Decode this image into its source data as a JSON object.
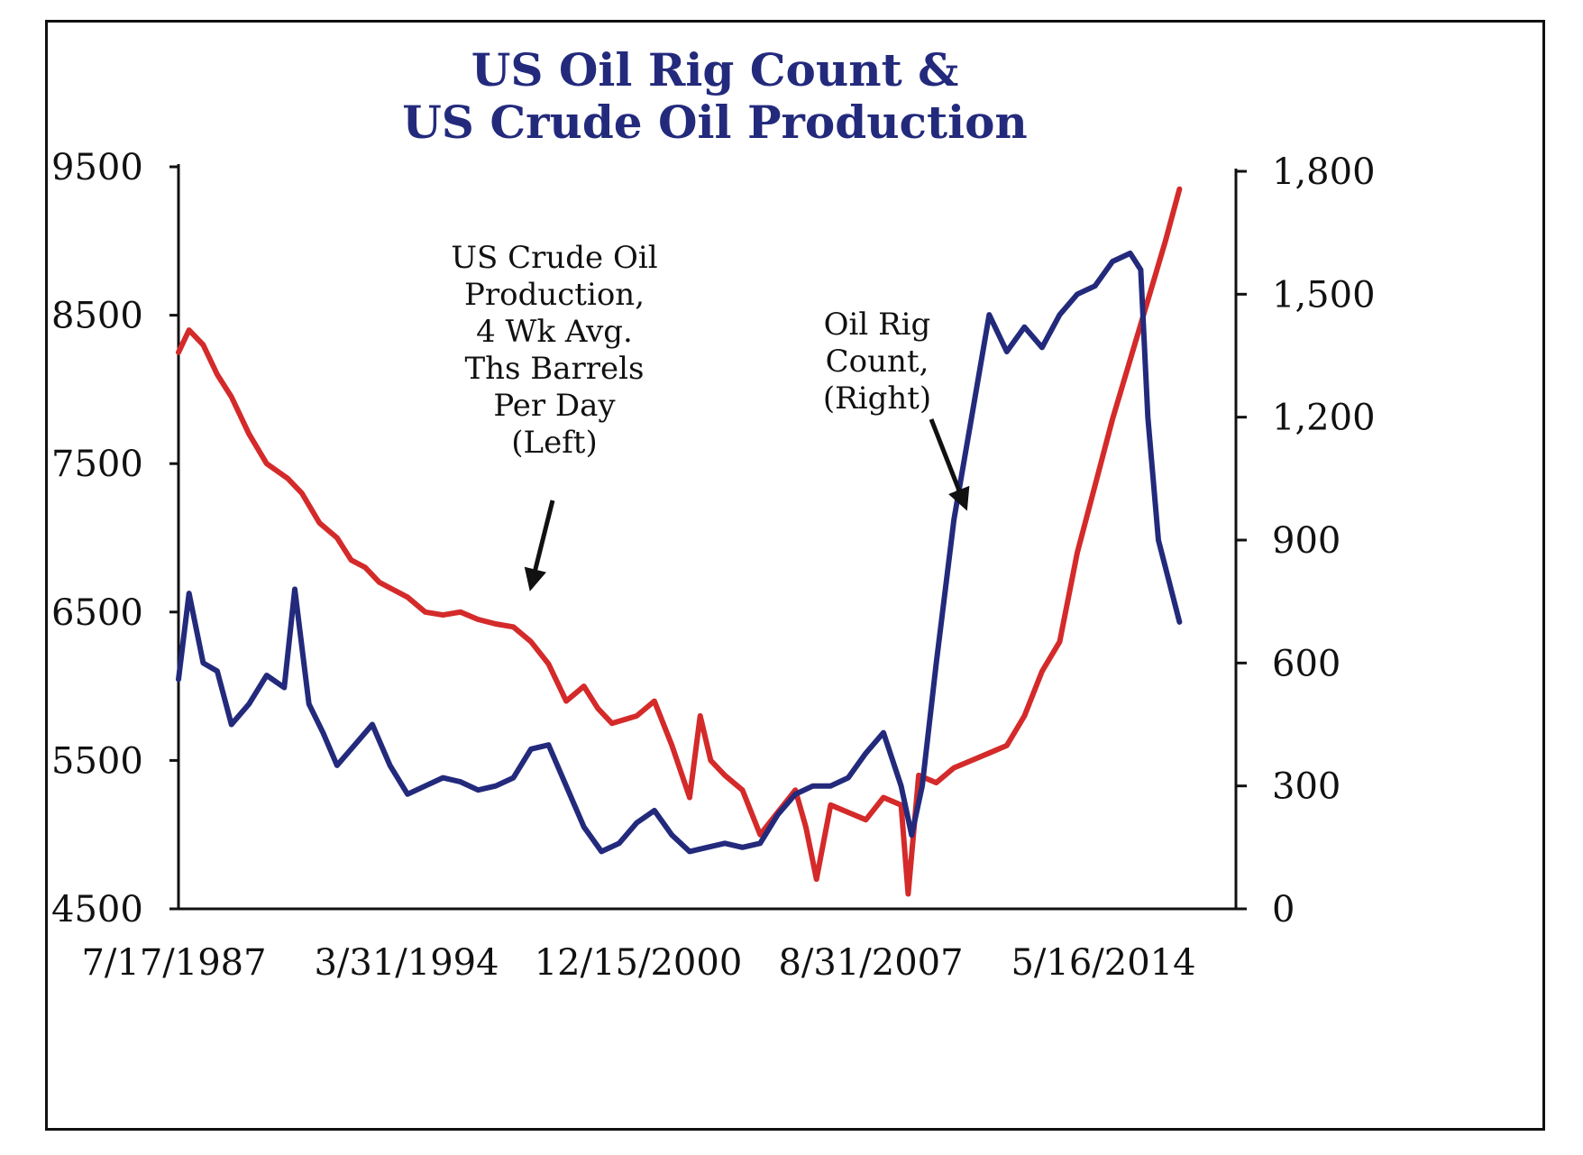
{
  "chart_data": {
    "type": "line",
    "title_lines": [
      "US Oil Rig Count &",
      "US Crude Oil Production"
    ],
    "x_tick_labels": [
      "7/17/1987",
      "3/31/1994",
      "12/15/2000",
      "8/31/2007",
      "5/16/2014"
    ],
    "x_ticks": [
      1987.54,
      1994.25,
      2000.96,
      2007.67,
      2014.38
    ],
    "xlim": [
      1987.5,
      2017.5
    ],
    "left_axis": {
      "ylim": [
        4500,
        9500
      ],
      "ticks": [
        4500,
        5500,
        6500,
        7500,
        8500,
        9500
      ],
      "tick_labels": [
        "4500",
        "5500",
        "6500",
        "7500",
        "8500",
        "9500"
      ]
    },
    "right_axis": {
      "ylim": [
        0,
        1800
      ],
      "ticks": [
        0,
        300,
        600,
        900,
        1200,
        1500,
        1800
      ],
      "tick_labels": [
        "0",
        "300",
        "600",
        "900",
        "1,200",
        "1,500",
        "1,800"
      ]
    },
    "series": [
      {
        "name": "US Crude Oil Production, 4 Wk Avg. Ths Barrels Per Day (Left)",
        "axis": "left",
        "color": "#d42a2a",
        "x": [
          1987.5,
          1987.8,
          1988.2,
          1988.6,
          1989.0,
          1989.5,
          1990.0,
          1990.6,
          1991.0,
          1991.5,
          1992.0,
          1992.4,
          1992.8,
          1993.2,
          1993.6,
          1994.0,
          1994.5,
          1995.0,
          1995.5,
          1996.0,
          1996.5,
          1997.0,
          1997.5,
          1998.0,
          1998.5,
          1999.0,
          1999.4,
          1999.8,
          2000.5,
          2001.0,
          2001.5,
          2002.0,
          2002.3,
          2002.6,
          2003.0,
          2003.5,
          2004.0,
          2004.5,
          2005.0,
          2005.3,
          2005.6,
          2006.0,
          2006.5,
          2007.0,
          2007.5,
          2008.0,
          2008.2,
          2008.5,
          2009.0,
          2009.5,
          2010.0,
          2010.5,
          2011.0,
          2011.5,
          2012.0,
          2012.5,
          2013.0,
          2013.5,
          2014.0,
          2014.5,
          2015.0,
          2015.5,
          2015.9
        ],
        "y": [
          8250,
          8400,
          8300,
          8100,
          7950,
          7700,
          7500,
          7400,
          7300,
          7100,
          7000,
          6850,
          6800,
          6700,
          6650,
          6600,
          6500,
          6480,
          6500,
          6450,
          6420,
          6400,
          6300,
          6150,
          5900,
          6000,
          5850,
          5750,
          5800,
          5900,
          5600,
          5250,
          5800,
          5500,
          5400,
          5300,
          5000,
          5150,
          5300,
          5050,
          4700,
          5200,
          5150,
          5100,
          5250,
          5200,
          4600,
          5400,
          5350,
          5450,
          5500,
          5550,
          5600,
          5800,
          6100,
          6300,
          6900,
          7350,
          7800,
          8200,
          8600,
          9000,
          9350
        ]
      },
      {
        "name": "Oil Rig Count, (Right)",
        "axis": "right",
        "color": "#232a7c",
        "x": [
          1987.5,
          1987.8,
          1988.2,
          1988.6,
          1989.0,
          1989.5,
          1990.0,
          1990.5,
          1990.8,
          1991.2,
          1991.6,
          1992.0,
          1992.5,
          1993.0,
          1993.5,
          1994.0,
          1994.5,
          1995.0,
          1995.5,
          1996.0,
          1996.5,
          1997.0,
          1997.5,
          1998.0,
          1998.5,
          1999.0,
          1999.5,
          2000.0,
          2000.5,
          2001.0,
          2001.5,
          2002.0,
          2002.5,
          2003.0,
          2003.5,
          2004.0,
          2004.5,
          2005.0,
          2005.5,
          2006.0,
          2006.5,
          2007.0,
          2007.5,
          2008.0,
          2008.3,
          2008.6,
          2009.0,
          2009.5,
          2010.0,
          2010.5,
          2011.0,
          2011.5,
          2012.0,
          2012.5,
          2013.0,
          2013.5,
          2014.0,
          2014.5,
          2014.8,
          2015.0,
          2015.3,
          2015.6,
          2015.9
        ],
        "y": [
          560,
          770,
          600,
          580,
          450,
          500,
          570,
          540,
          780,
          500,
          430,
          350,
          400,
          450,
          350,
          280,
          300,
          320,
          310,
          290,
          300,
          320,
          390,
          400,
          300,
          200,
          140,
          160,
          210,
          240,
          180,
          140,
          150,
          160,
          150,
          160,
          230,
          280,
          300,
          300,
          320,
          380,
          430,
          300,
          180,
          300,
          600,
          950,
          1200,
          1450,
          1360,
          1420,
          1370,
          1450,
          1500,
          1520,
          1580,
          1600,
          1560,
          1200,
          900,
          800,
          700
        ]
      }
    ],
    "annotations": [
      {
        "name": "production-label",
        "lines": [
          "US Crude Oil",
          "Production,",
          "4 Wk Avg.",
          "Ths Barrels",
          "Per Day",
          "(Left)"
        ]
      },
      {
        "name": "rig-label",
        "lines": [
          "Oil Rig",
          "Count,",
          "(Right)"
        ]
      }
    ]
  }
}
